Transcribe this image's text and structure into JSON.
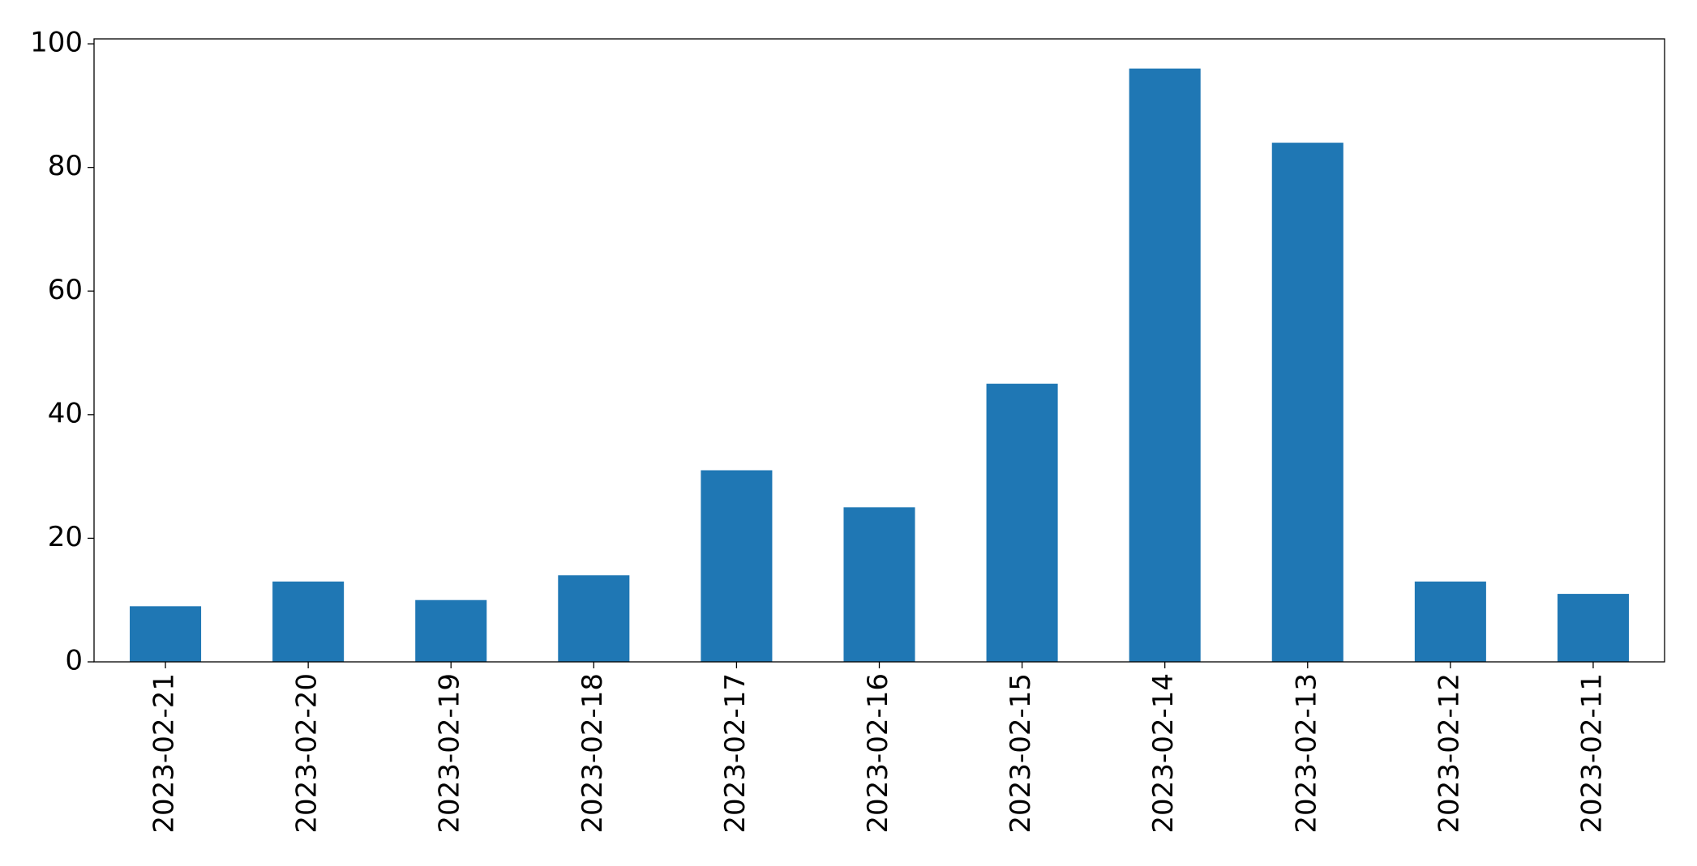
{
  "chart_data": {
    "type": "bar",
    "categories": [
      "2023-02-21",
      "2023-02-20",
      "2023-02-19",
      "2023-02-18",
      "2023-02-17",
      "2023-02-16",
      "2023-02-15",
      "2023-02-14",
      "2023-02-13",
      "2023-02-12",
      "2023-02-11"
    ],
    "values": [
      9,
      13,
      10,
      14,
      31,
      25,
      45,
      96,
      84,
      13,
      11
    ],
    "color": "#1f77b4",
    "ylim": [
      0,
      100.8
    ],
    "yticks": [
      0,
      20,
      40,
      60,
      80,
      100
    ],
    "grid": false
  }
}
